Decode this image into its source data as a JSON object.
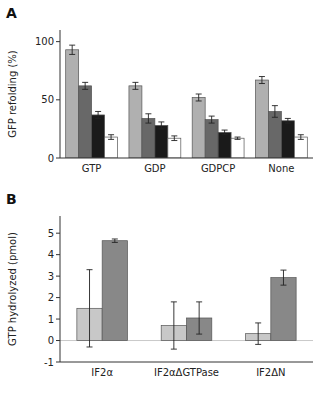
{
  "chart_data": [
    {
      "type": "bar",
      "title": "A",
      "categories": [
        "GTP",
        "GDP",
        "GDPCP",
        "None"
      ],
      "y_label": "GFP refolding (%)",
      "series": [
        {
          "color": "#b0b0b0",
          "values": [
            93,
            62,
            52,
            67
          ],
          "errors": [
            4,
            3,
            3,
            3
          ]
        },
        {
          "color": "#686868",
          "values": [
            62,
            34,
            33,
            40
          ],
          "errors": [
            3,
            4,
            3,
            5
          ]
        },
        {
          "color": "#1a1a1a",
          "values": [
            37,
            28,
            22,
            32
          ],
          "errors": [
            3,
            3,
            2,
            2
          ]
        },
        {
          "color": "#ffffff",
          "values": [
            18,
            17,
            17,
            18
          ],
          "errors": [
            2,
            2,
            1,
            2
          ]
        }
      ],
      "ylim": [
        0,
        110
      ],
      "yticks": [
        0,
        50,
        100
      ]
    },
    {
      "type": "bar",
      "title": "B",
      "categories": [
        "IF2α",
        "IF2αΔGTPase",
        "IF2ΔN"
      ],
      "y_label": "GTP hydrolyzed (pmol)",
      "series": [
        {
          "color": "#c8c8c8",
          "values": [
            1.5,
            0.7,
            0.32
          ],
          "errors": [
            1.8,
            1.1,
            0.5
          ]
        },
        {
          "color": "#888888",
          "values": [
            4.65,
            1.05,
            2.93
          ],
          "errors": [
            0.08,
            0.75,
            0.35
          ]
        }
      ],
      "ylim": [
        -1,
        5.8
      ],
      "yticks": [
        -1,
        0,
        1,
        2,
        3,
        4,
        5
      ]
    }
  ]
}
